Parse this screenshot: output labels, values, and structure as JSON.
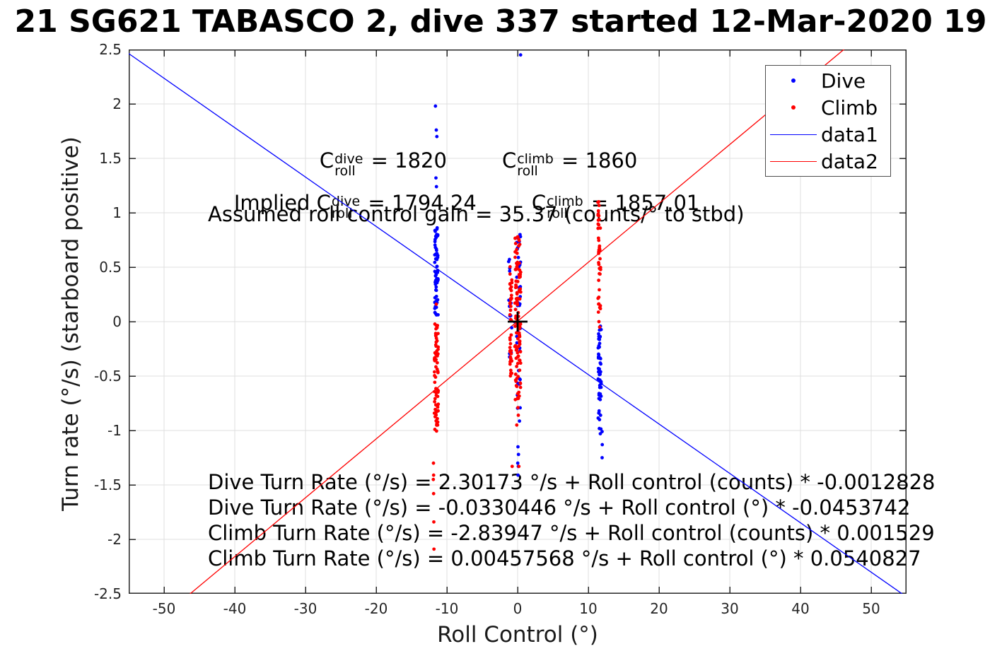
{
  "title": "21 SG621 TABASCO 2, dive 337 started 12-Mar-2020 19",
  "axes": {
    "xlabel": "Roll Control (°)",
    "ylabel": "Turn rate (°/s) (starboard positive)"
  },
  "legend": {
    "items": [
      {
        "label": "Dive",
        "marker": "dot",
        "color": "#0000ff"
      },
      {
        "label": "Climb",
        "marker": "dot",
        "color": "#ff0000"
      },
      {
        "label": "data1",
        "marker": "line",
        "color": "#0000ff"
      },
      {
        "label": "data2",
        "marker": "line",
        "color": "#ff0000"
      }
    ]
  },
  "annotations": {
    "c_symbol": "C",
    "sub_roll": "roll",
    "sup_dive": "dive",
    "sup_climb": "climb",
    "line1_eq1": " = 1820",
    "line1_eq2": " = 1860",
    "line2_prefix": "Implied ",
    "line2_eq1": " = 1794.24",
    "line2_eq2": " = 1857.01",
    "line3": "Assumed roll control gain = 35.37 (counts/° to stbd)",
    "fit_lines": [
      "Dive Turn Rate (°/s) = 2.30173 °/s + Roll control (counts) * -0.0012828",
      "Dive Turn Rate (°/s) = -0.0330446 °/s + Roll control (°) * -0.0453742",
      "Climb Turn Rate (°/s) = -2.83947 °/s + Roll control (counts) * 0.001529",
      "Climb Turn Rate (°/s) = 0.00457568 °/s + Roll control (°) * 0.0540827"
    ]
  },
  "chart_data": {
    "type": "scatter",
    "title": "21 SG621 TABASCO 2, dive 337 started 12-Mar-2020 19",
    "xlabel": "Roll Control (°)",
    "ylabel": "Turn rate (°/s) (starboard positive)",
    "xlim": [
      -55,
      55
    ],
    "ylim": [
      -2.5,
      2.5
    ],
    "x_ticks": [
      -50,
      -40,
      -30,
      -20,
      -10,
      0,
      10,
      20,
      30,
      40,
      50
    ],
    "y_ticks": [
      -2.5,
      -2,
      -1.5,
      -1,
      -0.5,
      0,
      0.5,
      1,
      1.5,
      2,
      2.5
    ],
    "grid": true,
    "legend_position": "northeast",
    "point_radius": 2.4,
    "series": [
      {
        "name": "Dive",
        "color": "#0000ff",
        "clusters": [
          {
            "x": -11.5,
            "xj": 0.25,
            "y0": 0.06,
            "y1": 0.88,
            "n": 60,
            "seed": 101
          },
          {
            "x": -1.05,
            "xj": 0.22,
            "y0": -0.38,
            "y1": 0.6,
            "n": 13,
            "seed": 102
          },
          {
            "x": 0.12,
            "xj": 0.3,
            "y0": -0.92,
            "y1": 0.8,
            "n": 42,
            "seed": 103
          },
          {
            "x": 11.6,
            "xj": 0.22,
            "y0": -1.06,
            "y1": -0.03,
            "n": 55,
            "seed": 104
          }
        ],
        "outliers": [
          [
            0.42,
            2.45
          ],
          [
            -11.62,
            1.98
          ],
          [
            -11.5,
            1.76
          ],
          [
            -11.42,
            1.7
          ],
          [
            -11.55,
            1.32
          ],
          [
            -11.48,
            1.24
          ],
          [
            0.05,
            -1.15
          ],
          [
            0.12,
            -1.22
          ],
          [
            0.02,
            -1.3
          ],
          [
            0.1,
            -1.33
          ],
          [
            0.06,
            -1.41
          ],
          [
            11.95,
            -1.01
          ],
          [
            11.97,
            -1.13
          ],
          [
            11.95,
            -1.25
          ]
        ]
      },
      {
        "name": "Climb",
        "color": "#ff0000",
        "clusters": [
          {
            "x": -11.5,
            "xj": 0.28,
            "y0": -1.02,
            "y1": -0.02,
            "n": 68,
            "seed": 201
          },
          {
            "x": -0.95,
            "xj": 0.14,
            "y0": -0.52,
            "y1": 0.52,
            "n": 40,
            "seed": 202
          },
          {
            "x": 0.02,
            "xj": 0.42,
            "y0": -0.72,
            "y1": 0.78,
            "n": 110,
            "seed": 203
          },
          {
            "x": 11.55,
            "xj": 0.2,
            "y0": 0.06,
            "y1": 1.12,
            "n": 40,
            "seed": 204
          }
        ],
        "outliers": [
          [
            -11.5,
            0.16
          ],
          [
            -11.9,
            -1.3
          ],
          [
            -11.88,
            -1.41
          ],
          [
            -11.92,
            -1.45
          ],
          [
            -11.88,
            -1.58
          ],
          [
            -11.85,
            -1.84
          ],
          [
            -11.83,
            -2.09
          ],
          [
            0.18,
            -1.33
          ],
          [
            -0.77,
            -1.33
          ],
          [
            0.1,
            -0.86
          ],
          [
            0.05,
            -0.79
          ],
          [
            -0.12,
            -0.95
          ],
          [
            11.5,
            0.0
          ],
          [
            11.6,
            -0.05
          ]
        ]
      }
    ],
    "lines": [
      {
        "name": "data1",
        "color": "#0000ff",
        "intercept": -0.0330446,
        "slope": -0.0453742
      },
      {
        "name": "data2",
        "color": "#ff0000",
        "intercept": 0.00457568,
        "slope": 0.0540827
      }
    ],
    "origin_marker": {
      "x": 0,
      "y": 0,
      "shape": "plus",
      "color": "#000000"
    },
    "colors": {
      "grid": "#dfdfdf",
      "axis_box": "#262626"
    }
  }
}
